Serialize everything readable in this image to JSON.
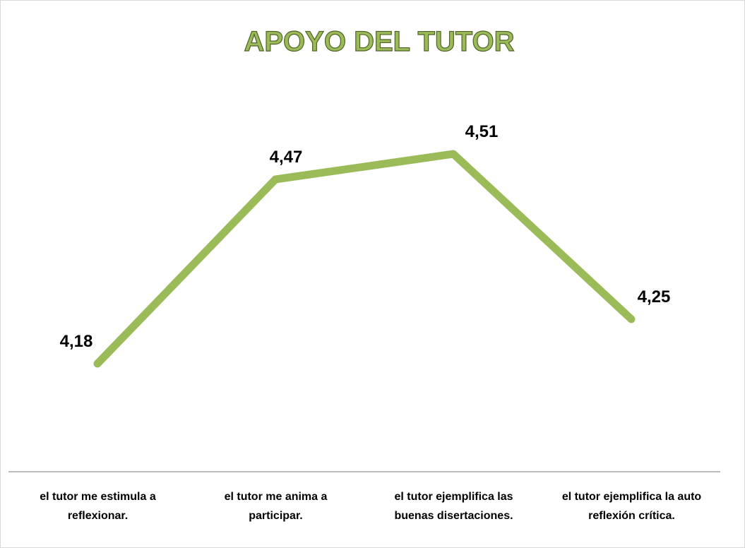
{
  "chart_data": {
    "type": "line",
    "title": "APOYO DEL TUTOR",
    "categories": [
      "el tutor me estimula a reflexionar.",
      "el tutor me anima a participar.",
      "el tutor ejemplifica las buenas disertaciones.",
      "el tutor ejemplifica la auto reflexión crítica."
    ],
    "values": [
      4.18,
      4.47,
      4.51,
      4.25
    ],
    "value_labels": [
      "4,18",
      "4,47",
      "4,51",
      "4,25"
    ],
    "color": "#9bbb59"
  }
}
